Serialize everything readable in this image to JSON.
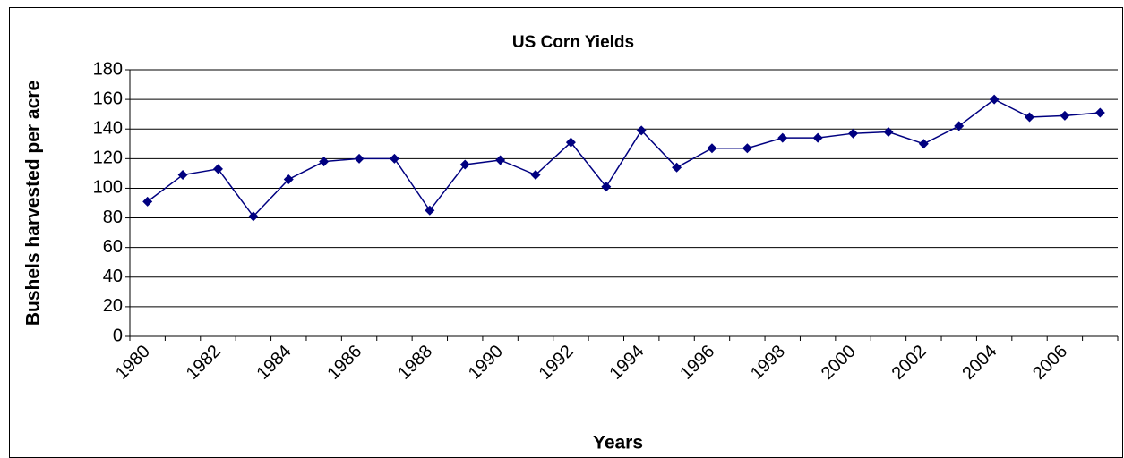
{
  "chart_data": {
    "type": "line",
    "title": "US Corn Yields",
    "x_label": "Years",
    "y_label": "Bushels harvested per acre",
    "categories": [
      "1980",
      null,
      "1982",
      null,
      "1984",
      null,
      "1986",
      null,
      "1988",
      null,
      "1990",
      null,
      "1992",
      null,
      "1994",
      null,
      "1996",
      null,
      "1998",
      null,
      "2000",
      null,
      "2002",
      null,
      "2004",
      null,
      "2006",
      null
    ],
    "series": [
      {
        "name": "US Corn Yields",
        "color": "#000080",
        "values": [
          91,
          109,
          113,
          81,
          106,
          118,
          120,
          120,
          85,
          116,
          119,
          109,
          131,
          101,
          139,
          114,
          127,
          127,
          134,
          134,
          137,
          138,
          130,
          142,
          160,
          148,
          149,
          151
        ]
      }
    ],
    "ylim": [
      0,
      180
    ],
    "yticks": [
      0,
      20,
      40,
      60,
      80,
      100,
      120,
      140,
      160,
      180
    ],
    "grid": true
  }
}
